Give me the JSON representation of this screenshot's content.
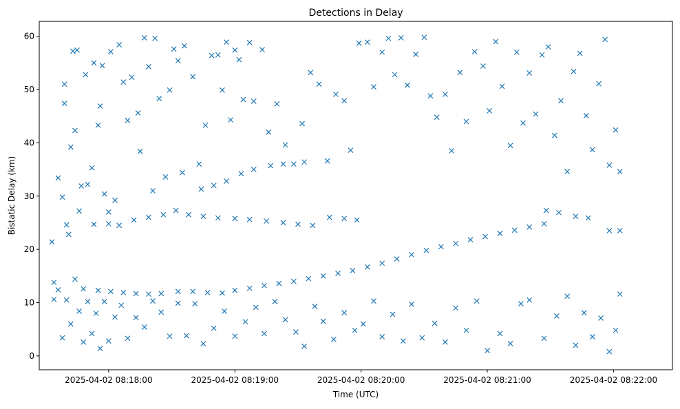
{
  "chart_data": {
    "type": "scatter",
    "title": "Detections in Delay",
    "xlabel": "Time (UTC)",
    "ylabel": "Bistatic Delay (km)",
    "marker": "x",
    "color": "#1f77b4",
    "grid": false,
    "legend": "none",
    "xlim": [
      "2025-04-02 08:17:27",
      "2025-04-02 08:22:28"
    ],
    "ylim": [
      -2.6,
      62.8
    ],
    "x_ticks": [
      "2025-04-02 08:18:00",
      "2025-04-02 08:19:00",
      "2025-04-02 08:20:00",
      "2025-04-02 08:21:00",
      "2025-04-02 08:22:00"
    ],
    "y_ticks": [
      0,
      10,
      20,
      30,
      40,
      50,
      60
    ],
    "series": [
      {
        "points": [
          [
            "2025-04-02 08:17:33",
            21.4
          ],
          [
            "2025-04-02 08:17:34",
            13.8
          ],
          [
            "2025-04-02 08:17:36",
            33.4
          ],
          [
            "2025-04-02 08:17:38",
            29.8
          ],
          [
            "2025-04-02 08:17:39",
            51.0
          ],
          [
            "2025-04-02 08:17:39",
            47.4
          ],
          [
            "2025-04-02 08:17:40",
            24.6
          ],
          [
            "2025-04-02 08:17:41",
            22.8
          ],
          [
            "2025-04-02 08:17:42",
            39.2
          ],
          [
            "2025-04-02 08:17:43",
            57.2
          ],
          [
            "2025-04-02 08:17:44",
            42.3
          ],
          [
            "2025-04-02 08:17:45",
            57.4
          ],
          [
            "2025-04-02 08:17:46",
            27.2
          ],
          [
            "2025-04-02 08:17:47",
            31.9
          ],
          [
            "2025-04-02 08:17:49",
            52.8
          ],
          [
            "2025-04-02 08:17:50",
            32.2
          ],
          [
            "2025-04-02 08:17:52",
            35.3
          ],
          [
            "2025-04-02 08:17:53",
            55.0
          ],
          [
            "2025-04-02 08:17:55",
            43.3
          ],
          [
            "2025-04-02 08:17:56",
            46.9
          ],
          [
            "2025-04-02 08:17:57",
            54.5
          ],
          [
            "2025-04-02 08:17:58",
            30.4
          ],
          [
            "2025-04-02 08:18:00",
            27.0
          ],
          [
            "2025-04-02 08:18:01",
            57.1
          ],
          [
            "2025-04-02 08:18:03",
            29.2
          ],
          [
            "2025-04-02 08:18:05",
            58.4
          ],
          [
            "2025-04-02 08:18:07",
            51.4
          ],
          [
            "2025-04-02 08:18:09",
            44.2
          ],
          [
            "2025-04-02 08:18:11",
            52.3
          ],
          [
            "2025-04-02 08:18:14",
            45.6
          ],
          [
            "2025-04-02 08:18:15",
            38.4
          ],
          [
            "2025-04-02 08:18:17",
            59.7
          ],
          [
            "2025-04-02 08:18:19",
            54.3
          ],
          [
            "2025-04-02 08:18:21",
            31.0
          ],
          [
            "2025-04-02 08:18:22",
            59.6
          ],
          [
            "2025-04-02 08:18:24",
            48.3
          ],
          [
            "2025-04-02 08:18:27",
            33.6
          ],
          [
            "2025-04-02 08:18:29",
            49.9
          ],
          [
            "2025-04-02 08:18:31",
            57.6
          ],
          [
            "2025-04-02 08:18:33",
            55.4
          ],
          [
            "2025-04-02 08:18:35",
            34.4
          ],
          [
            "2025-04-02 08:18:36",
            58.2
          ],
          [
            "2025-04-02 08:18:40",
            52.4
          ],
          [
            "2025-04-02 08:18:43",
            36.0
          ],
          [
            "2025-04-02 08:18:46",
            43.3
          ],
          [
            "2025-04-02 08:18:49",
            56.4
          ],
          [
            "2025-04-02 08:18:52",
            56.5
          ],
          [
            "2025-04-02 08:18:54",
            49.9
          ],
          [
            "2025-04-02 08:18:56",
            58.9
          ],
          [
            "2025-04-02 08:18:58",
            44.3
          ],
          [
            "2025-04-02 08:19:00",
            57.4
          ],
          [
            "2025-04-02 08:19:02",
            55.6
          ],
          [
            "2025-04-02 08:19:04",
            48.1
          ],
          [
            "2025-04-02 08:19:07",
            58.8
          ],
          [
            "2025-04-02 08:19:09",
            47.8
          ],
          [
            "2025-04-02 08:19:13",
            57.5
          ],
          [
            "2025-04-02 08:19:16",
            42.0
          ],
          [
            "2025-04-02 08:19:20",
            47.3
          ],
          [
            "2025-04-02 08:19:24",
            39.6
          ],
          [
            "2025-04-02 08:19:28",
            36.0
          ],
          [
            "2025-04-02 08:19:32",
            43.6
          ],
          [
            "2025-04-02 08:19:36",
            53.2
          ],
          [
            "2025-04-02 08:19:40",
            51.0
          ],
          [
            "2025-04-02 08:19:44",
            36.6
          ],
          [
            "2025-04-02 08:19:48",
            49.1
          ],
          [
            "2025-04-02 08:19:52",
            47.9
          ],
          [
            "2025-04-02 08:19:55",
            38.6
          ],
          [
            "2025-04-02 08:19:59",
            58.7
          ],
          [
            "2025-04-02 08:20:03",
            58.9
          ],
          [
            "2025-04-02 08:20:06",
            50.5
          ],
          [
            "2025-04-02 08:20:10",
            57.0
          ],
          [
            "2025-04-02 08:20:13",
            59.6
          ],
          [
            "2025-04-02 08:20:16",
            52.8
          ],
          [
            "2025-04-02 08:20:19",
            59.7
          ],
          [
            "2025-04-02 08:20:22",
            50.8
          ],
          [
            "2025-04-02 08:20:26",
            56.6
          ],
          [
            "2025-04-02 08:20:30",
            59.8
          ],
          [
            "2025-04-02 08:20:33",
            48.8
          ],
          [
            "2025-04-02 08:20:36",
            44.8
          ],
          [
            "2025-04-02 08:20:40",
            49.1
          ],
          [
            "2025-04-02 08:20:43",
            38.5
          ],
          [
            "2025-04-02 08:20:47",
            53.2
          ],
          [
            "2025-04-02 08:20:50",
            44.0
          ],
          [
            "2025-04-02 08:20:54",
            57.1
          ],
          [
            "2025-04-02 08:20:58",
            54.4
          ],
          [
            "2025-04-02 08:21:01",
            46.0
          ],
          [
            "2025-04-02 08:21:04",
            59.0
          ],
          [
            "2025-04-02 08:21:07",
            50.6
          ],
          [
            "2025-04-02 08:21:11",
            39.5
          ],
          [
            "2025-04-02 08:21:14",
            57.0
          ],
          [
            "2025-04-02 08:21:17",
            43.7
          ],
          [
            "2025-04-02 08:21:20",
            53.1
          ],
          [
            "2025-04-02 08:21:23",
            45.4
          ],
          [
            "2025-04-02 08:21:26",
            56.5
          ],
          [
            "2025-04-02 08:21:29",
            58.0
          ],
          [
            "2025-04-02 08:21:32",
            41.4
          ],
          [
            "2025-04-02 08:21:35",
            47.9
          ],
          [
            "2025-04-02 08:21:38",
            34.6
          ],
          [
            "2025-04-02 08:21:41",
            53.4
          ],
          [
            "2025-04-02 08:21:44",
            56.8
          ],
          [
            "2025-04-02 08:21:47",
            45.1
          ],
          [
            "2025-04-02 08:21:50",
            38.7
          ],
          [
            "2025-04-02 08:21:53",
            51.1
          ],
          [
            "2025-04-02 08:21:56",
            59.4
          ],
          [
            "2025-04-02 08:21:58",
            35.8
          ],
          [
            "2025-04-02 08:22:01",
            42.4
          ],
          [
            "2025-04-02 08:22:03",
            34.6
          ],
          [
            "2025-04-02 08:17:34",
            10.6
          ],
          [
            "2025-04-02 08:17:36",
            12.4
          ],
          [
            "2025-04-02 08:17:38",
            3.4
          ],
          [
            "2025-04-02 08:17:40",
            10.5
          ],
          [
            "2025-04-02 08:17:42",
            6.0
          ],
          [
            "2025-04-02 08:17:44",
            14.4
          ],
          [
            "2025-04-02 08:17:46",
            8.4
          ],
          [
            "2025-04-02 08:17:48",
            2.6
          ],
          [
            "2025-04-02 08:17:50",
            10.2
          ],
          [
            "2025-04-02 08:17:52",
            4.2
          ],
          [
            "2025-04-02 08:17:54",
            8.0
          ],
          [
            "2025-04-02 08:17:56",
            1.4
          ],
          [
            "2025-04-02 08:17:58",
            10.2
          ],
          [
            "2025-04-02 08:18:00",
            2.8
          ],
          [
            "2025-04-02 08:18:03",
            7.3
          ],
          [
            "2025-04-02 08:18:06",
            9.5
          ],
          [
            "2025-04-02 08:18:09",
            3.3
          ],
          [
            "2025-04-02 08:18:13",
            7.2
          ],
          [
            "2025-04-02 08:18:17",
            5.4
          ],
          [
            "2025-04-02 08:18:21",
            10.3
          ],
          [
            "2025-04-02 08:18:25",
            8.2
          ],
          [
            "2025-04-02 08:18:29",
            3.7
          ],
          [
            "2025-04-02 08:18:33",
            9.9
          ],
          [
            "2025-04-02 08:18:37",
            3.8
          ],
          [
            "2025-04-02 08:18:41",
            9.8
          ],
          [
            "2025-04-02 08:18:45",
            2.3
          ],
          [
            "2025-04-02 08:18:50",
            5.2
          ],
          [
            "2025-04-02 08:18:55",
            8.4
          ],
          [
            "2025-04-02 08:19:00",
            3.7
          ],
          [
            "2025-04-02 08:19:05",
            6.4
          ],
          [
            "2025-04-02 08:19:10",
            9.1
          ],
          [
            "2025-04-02 08:19:14",
            4.2
          ],
          [
            "2025-04-02 08:19:19",
            10.2
          ],
          [
            "2025-04-02 08:19:24",
            6.8
          ],
          [
            "2025-04-02 08:19:29",
            4.5
          ],
          [
            "2025-04-02 08:19:33",
            1.8
          ],
          [
            "2025-04-02 08:19:38",
            9.3
          ],
          [
            "2025-04-02 08:19:42",
            6.5
          ],
          [
            "2025-04-02 08:19:47",
            3.1
          ],
          [
            "2025-04-02 08:19:52",
            8.1
          ],
          [
            "2025-04-02 08:19:57",
            4.8
          ],
          [
            "2025-04-02 08:20:01",
            6.0
          ],
          [
            "2025-04-02 08:20:06",
            10.3
          ],
          [
            "2025-04-02 08:20:10",
            3.6
          ],
          [
            "2025-04-02 08:20:15",
            7.8
          ],
          [
            "2025-04-02 08:20:20",
            2.8
          ],
          [
            "2025-04-02 08:20:24",
            9.7
          ],
          [
            "2025-04-02 08:20:29",
            3.4
          ],
          [
            "2025-04-02 08:20:35",
            6.1
          ],
          [
            "2025-04-02 08:20:40",
            2.6
          ],
          [
            "2025-04-02 08:20:45",
            9.0
          ],
          [
            "2025-04-02 08:20:50",
            4.8
          ],
          [
            "2025-04-02 08:20:55",
            10.3
          ],
          [
            "2025-04-02 08:21:00",
            1.0
          ],
          [
            "2025-04-02 08:21:06",
            4.2
          ],
          [
            "2025-04-02 08:21:11",
            2.3
          ],
          [
            "2025-04-02 08:21:16",
            9.8
          ],
          [
            "2025-04-02 08:21:20",
            10.5
          ],
          [
            "2025-04-02 08:21:27",
            3.3
          ],
          [
            "2025-04-02 08:21:33",
            7.5
          ],
          [
            "2025-04-02 08:21:38",
            11.2
          ],
          [
            "2025-04-02 08:21:42",
            2.0
          ],
          [
            "2025-04-02 08:21:46",
            8.1
          ],
          [
            "2025-04-02 08:21:50",
            3.6
          ],
          [
            "2025-04-02 08:21:54",
            7.1
          ],
          [
            "2025-04-02 08:21:58",
            0.8
          ],
          [
            "2025-04-02 08:22:01",
            4.8
          ],
          [
            "2025-04-02 08:22:03",
            11.6
          ],
          [
            "2025-04-02 08:17:48",
            12.6
          ],
          [
            "2025-04-02 08:17:55",
            12.3
          ],
          [
            "2025-04-02 08:18:01",
            12.1
          ],
          [
            "2025-04-02 08:18:07",
            11.9
          ],
          [
            "2025-04-02 08:18:13",
            11.7
          ],
          [
            "2025-04-02 08:18:19",
            11.6
          ],
          [
            "2025-04-02 08:18:25",
            11.7
          ],
          [
            "2025-04-02 08:18:33",
            12.1
          ],
          [
            "2025-04-02 08:18:40",
            12.1
          ],
          [
            "2025-04-02 08:18:47",
            11.9
          ],
          [
            "2025-04-02 08:18:54",
            11.8
          ],
          [
            "2025-04-02 08:19:00",
            12.3
          ],
          [
            "2025-04-02 08:19:07",
            12.7
          ],
          [
            "2025-04-02 08:19:14",
            13.2
          ],
          [
            "2025-04-02 08:19:21",
            13.6
          ],
          [
            "2025-04-02 08:19:28",
            14.0
          ],
          [
            "2025-04-02 08:19:35",
            14.5
          ],
          [
            "2025-04-02 08:19:42",
            15.0
          ],
          [
            "2025-04-02 08:19:49",
            15.5
          ],
          [
            "2025-04-02 08:19:56",
            16.0
          ],
          [
            "2025-04-02 08:20:03",
            16.7
          ],
          [
            "2025-04-02 08:20:10",
            17.4
          ],
          [
            "2025-04-02 08:20:17",
            18.2
          ],
          [
            "2025-04-02 08:20:24",
            19.0
          ],
          [
            "2025-04-02 08:20:31",
            19.8
          ],
          [
            "2025-04-02 08:20:38",
            20.5
          ],
          [
            "2025-04-02 08:20:45",
            21.1
          ],
          [
            "2025-04-02 08:20:52",
            21.8
          ],
          [
            "2025-04-02 08:20:59",
            22.4
          ],
          [
            "2025-04-02 08:21:06",
            23.0
          ],
          [
            "2025-04-02 08:21:13",
            23.6
          ],
          [
            "2025-04-02 08:21:20",
            24.2
          ],
          [
            "2025-04-02 08:21:27",
            24.8
          ],
          [
            "2025-04-02 08:21:34",
            26.9
          ],
          [
            "2025-04-02 08:17:53",
            24.7
          ],
          [
            "2025-04-02 08:18:00",
            24.8
          ],
          [
            "2025-04-02 08:18:05",
            24.5
          ],
          [
            "2025-04-02 08:18:12",
            25.5
          ],
          [
            "2025-04-02 08:18:19",
            26.0
          ],
          [
            "2025-04-02 08:18:26",
            26.5
          ],
          [
            "2025-04-02 08:18:32",
            27.3
          ],
          [
            "2025-04-02 08:18:38",
            26.5
          ],
          [
            "2025-04-02 08:18:45",
            26.2
          ],
          [
            "2025-04-02 08:18:52",
            25.9
          ],
          [
            "2025-04-02 08:19:00",
            25.8
          ],
          [
            "2025-04-02 08:19:07",
            25.6
          ],
          [
            "2025-04-02 08:19:15",
            25.3
          ],
          [
            "2025-04-02 08:19:23",
            25.0
          ],
          [
            "2025-04-02 08:19:30",
            24.7
          ],
          [
            "2025-04-02 08:19:37",
            24.5
          ],
          [
            "2025-04-02 08:19:45",
            26.0
          ],
          [
            "2025-04-02 08:19:52",
            25.8
          ],
          [
            "2025-04-02 08:19:58",
            25.5
          ],
          [
            "2025-04-02 08:21:28",
            27.3
          ],
          [
            "2025-04-02 08:21:42",
            26.2
          ],
          [
            "2025-04-02 08:21:48",
            25.9
          ],
          [
            "2025-04-02 08:21:58",
            23.5
          ],
          [
            "2025-04-02 08:22:03",
            23.5
          ],
          [
            "2025-04-02 08:18:44",
            31.3
          ],
          [
            "2025-04-02 08:18:50",
            32.0
          ],
          [
            "2025-04-02 08:18:56",
            32.8
          ],
          [
            "2025-04-02 08:19:03",
            34.2
          ],
          [
            "2025-04-02 08:19:09",
            35.0
          ],
          [
            "2025-04-02 08:19:17",
            35.7
          ],
          [
            "2025-04-02 08:19:23",
            36.0
          ],
          [
            "2025-04-02 08:19:33",
            36.4
          ]
        ]
      }
    ]
  }
}
